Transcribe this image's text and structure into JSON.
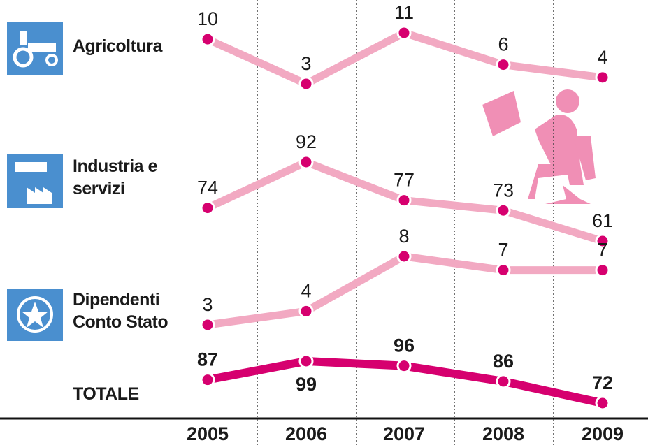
{
  "chart_data": {
    "type": "line",
    "categories": [
      "2005",
      "2006",
      "2007",
      "2008",
      "2009"
    ],
    "series": [
      {
        "name": "Agricoltura",
        "color": "#f2a9c2",
        "marker_color": "#d6006f",
        "values": [
          10,
          3,
          11,
          6,
          4
        ]
      },
      {
        "name": "Industria e servizi",
        "color": "#f2a9c2",
        "marker_color": "#d6006f",
        "values": [
          74,
          92,
          77,
          73,
          61
        ]
      },
      {
        "name": "Dipendenti Conto Stato",
        "color": "#f2a9c2",
        "marker_color": "#d6006f",
        "values": [
          3,
          4,
          8,
          7,
          7
        ]
      },
      {
        "name": "TOTALE",
        "color": "#d6006f",
        "marker_color": "#d6006f",
        "values": [
          87,
          99,
          96,
          86,
          72
        ]
      }
    ]
  }
}
